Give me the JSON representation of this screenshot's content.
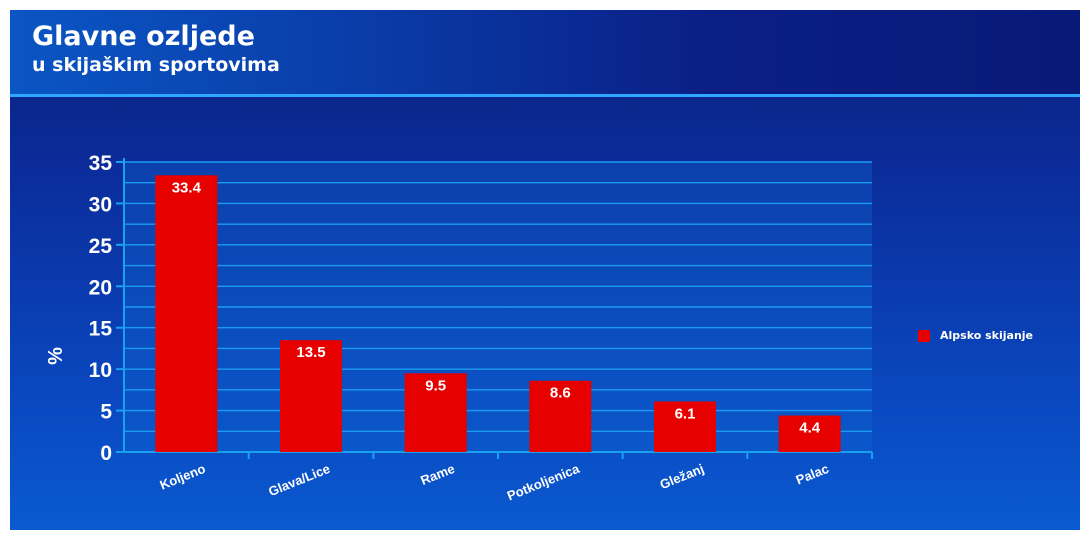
{
  "header": {
    "title": "Glavne ozljede",
    "subtitle": "u skijaškim sportovima"
  },
  "colors": {
    "bar": "#e60000",
    "axis": "#1aa0f0",
    "grid": "#1a9bf0",
    "text": "#ffffff"
  },
  "chart_data": {
    "type": "bar",
    "categories": [
      "Koljeno",
      "Glava/Lice",
      "Rame",
      "Potkoljenica",
      "Gležanj",
      "Palac"
    ],
    "series": [
      {
        "name": "Alpsko skijanje",
        "values": [
          33.4,
          13.5,
          9.5,
          8.6,
          6.1,
          4.4
        ]
      }
    ],
    "data_labels": [
      "33.4",
      "13.5",
      "9.5",
      "8.6",
      "6.1",
      "4.4"
    ],
    "ylabel": "%",
    "xlabel": "",
    "ylim": [
      0,
      35
    ],
    "yticks": [
      0,
      5,
      10,
      15,
      20,
      25,
      30,
      35
    ],
    "grid": true,
    "legend_position": "right"
  }
}
